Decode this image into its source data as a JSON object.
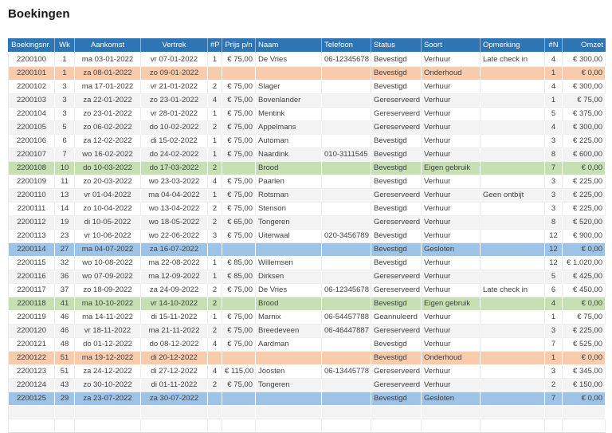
{
  "title": "Boekingen",
  "colors": {
    "header_bg": "#2E75B6",
    "header_text": "#FFFFFF",
    "band_gray": "#F3F3F3",
    "band_orange": "#F8CBAD",
    "band_green": "#C6E0B4",
    "band_blue": "#9DC3E6",
    "body_text": "#404040"
  },
  "table": {
    "columns": [
      {
        "key": "boekingsnr",
        "label": "Boekingsnr.",
        "align": "center"
      },
      {
        "key": "wk",
        "label": "Wk",
        "align": "center"
      },
      {
        "key": "aankomst",
        "label": "Aankomst",
        "align": "center"
      },
      {
        "key": "vertrek",
        "label": "Vertrek",
        "align": "center"
      },
      {
        "key": "p",
        "label": "#P",
        "align": "center"
      },
      {
        "key": "prijs-pn",
        "label": "Prijs p/n",
        "align": "right",
        "header_align": "center"
      },
      {
        "key": "naam",
        "label": "Naam",
        "align": "left"
      },
      {
        "key": "telefoon",
        "label": "Telefoon",
        "align": "left"
      },
      {
        "key": "status",
        "label": "Status",
        "align": "left"
      },
      {
        "key": "soort",
        "label": "Soort",
        "align": "left"
      },
      {
        "key": "opmerking",
        "label": "Opmerking",
        "align": "left"
      },
      {
        "key": "n",
        "label": "#N",
        "align": "center"
      },
      {
        "key": "omzet",
        "label": "Omzet",
        "align": "right"
      }
    ],
    "rows": [
      {
        "band": "white",
        "cells": [
          "2200100",
          "1",
          "ma 03-01-2022",
          "vr 07-01-2022",
          "1",
          "€ 75,00",
          "De Vries",
          "06-12345678",
          "Bevestigd",
          "Verhuur",
          "Late check in",
          "4",
          "€ 300,00"
        ]
      },
      {
        "band": "orange",
        "cells": [
          "2200101",
          "1",
          "za 08-01-2022",
          "zo 09-01-2022",
          "",
          "",
          "",
          "",
          "Bevestigd",
          "Onderhoud",
          "",
          "1",
          "€ 0,00"
        ]
      },
      {
        "band": "white",
        "cells": [
          "2200102",
          "3",
          "ma 17-01-2022",
          "vr 21-01-2022",
          "2",
          "€ 75,00",
          "Slager",
          "",
          "Bevestigd",
          "Verhuur",
          "",
          "4",
          "€ 300,00"
        ]
      },
      {
        "band": "gray",
        "cells": [
          "2200103",
          "3",
          "za 22-01-2022",
          "zo 23-01-2022",
          "4",
          "€ 75,00",
          "Bovenlander",
          "",
          "Gereserveerd",
          "Verhuur",
          "",
          "1",
          "€ 75,00"
        ]
      },
      {
        "band": "white",
        "cells": [
          "2200104",
          "3",
          "zo 23-01-2022",
          "vr 28-01-2022",
          "1",
          "€ 75,00",
          "Mentink",
          "",
          "Gereserveerd",
          "Verhuur",
          "",
          "5",
          "€ 375,00"
        ]
      },
      {
        "band": "gray",
        "cells": [
          "2200105",
          "5",
          "zo 06-02-2022",
          "do 10-02-2022",
          "2",
          "€ 75,00",
          "Appelmans",
          "",
          "Gereserveerd",
          "Verhuur",
          "",
          "4",
          "€ 300,00"
        ]
      },
      {
        "band": "white",
        "cells": [
          "2200106",
          "6",
          "za 12-02-2022",
          "di 15-02-2022",
          "1",
          "€ 75,00",
          "Automan",
          "",
          "Bevestigd",
          "Verhuur",
          "",
          "3",
          "€ 225,00"
        ]
      },
      {
        "band": "gray",
        "cells": [
          "2200107",
          "7",
          "wo 16-02-2022",
          "do 24-02-2022",
          "1",
          "€ 75,00",
          "Naardink",
          "010-3111545",
          "Bevestigd",
          "Verhuur",
          "",
          "8",
          "€ 600,00"
        ]
      },
      {
        "band": "green",
        "cells": [
          "2200108",
          "10",
          "do 10-03-2022",
          "do 17-03-2022",
          "2",
          "",
          "Brood",
          "",
          "Bevestigd",
          "Eigen gebruik",
          "",
          "7",
          "€ 0,00"
        ]
      },
      {
        "band": "white",
        "cells": [
          "2200109",
          "11",
          "zo 20-03-2022",
          "wo 23-03-2022",
          "4",
          "€ 75,00",
          "Paarlen",
          "",
          "Bevestigd",
          "Verhuur",
          "",
          "3",
          "€ 225,00"
        ]
      },
      {
        "band": "gray",
        "cells": [
          "2200110",
          "13",
          "vr 01-04-2022",
          "ma 04-04-2022",
          "1",
          "€ 75,00",
          "Rotsman",
          "",
          "Gereserveerd",
          "Verhuur",
          "Geen ontbijt",
          "3",
          "€ 225,00"
        ]
      },
      {
        "band": "white",
        "cells": [
          "2200111",
          "14",
          "zo 10-04-2022",
          "wo 13-04-2022",
          "2",
          "€ 75,00",
          "Stenson",
          "",
          "Bevestigd",
          "Verhuur",
          "",
          "3",
          "€ 225,00"
        ]
      },
      {
        "band": "gray",
        "cells": [
          "2200112",
          "19",
          "di 10-05-2022",
          "wo 18-05-2022",
          "2",
          "€ 65,00",
          "Tongeren",
          "",
          "Gereserveerd",
          "Verhuur",
          "",
          "8",
          "€ 520,00"
        ]
      },
      {
        "band": "white",
        "cells": [
          "2200113",
          "23",
          "vr 10-06-2022",
          "wo 22-06-2022",
          "3",
          "€ 75,00",
          "Uiterwaal",
          "020-3456789",
          "Bevestigd",
          "Verhuur",
          "",
          "12",
          "€ 900,00"
        ]
      },
      {
        "band": "blue",
        "cells": [
          "2200114",
          "27",
          "ma 04-07-2022",
          "za 16-07-2022",
          "",
          "",
          "",
          "",
          "Bevestigd",
          "Gesloten",
          "",
          "12",
          "€ 0,00"
        ]
      },
      {
        "band": "white",
        "cells": [
          "2200115",
          "32",
          "wo 10-08-2022",
          "ma 22-08-2022",
          "1",
          "€ 85,00",
          "Willemsen",
          "",
          "Bevestigd",
          "Verhuur",
          "",
          "12",
          "€ 1.020,00"
        ]
      },
      {
        "band": "gray",
        "cells": [
          "2200116",
          "36",
          "wo 07-09-2022",
          "ma 12-09-2022",
          "1",
          "€ 85,00",
          "Dirksen",
          "",
          "Gereserveerd",
          "Verhuur",
          "",
          "5",
          "€ 425,00"
        ]
      },
      {
        "band": "white",
        "cells": [
          "2200117",
          "37",
          "zo 18-09-2022",
          "za 24-09-2022",
          "2",
          "€ 75,00",
          "De Vries",
          "06-12345678",
          "Gereserveerd",
          "Verhuur",
          "Late check in",
          "6",
          "€ 450,00"
        ]
      },
      {
        "band": "green",
        "cells": [
          "2200118",
          "41",
          "ma 10-10-2022",
          "vr 14-10-2022",
          "2",
          "",
          "Brood",
          "",
          "Bevestigd",
          "Eigen gebruik",
          "",
          "4",
          "€ 0,00"
        ]
      },
      {
        "band": "white",
        "cells": [
          "2200119",
          "46",
          "ma 14-11-2022",
          "di 15-11-2022",
          "1",
          "€ 75,00",
          "Marnix",
          "06-54457788",
          "Geannuleerd",
          "Verhuur",
          "",
          "1",
          "€ 75,00"
        ]
      },
      {
        "band": "gray",
        "cells": [
          "2200120",
          "46",
          "vr 18-11-2022",
          "ma 21-11-2022",
          "2",
          "€ 75,00",
          "Breedeveen",
          "06-46447887",
          "Gereserveerd",
          "Verhuur",
          "",
          "3",
          "€ 225,00"
        ]
      },
      {
        "band": "white",
        "cells": [
          "2200121",
          "48",
          "do 01-12-2022",
          "do 08-12-2022",
          "4",
          "€ 75,00",
          "Aardman",
          "",
          "Bevestigd",
          "Verhuur",
          "",
          "7",
          "€ 525,00"
        ]
      },
      {
        "band": "orange",
        "cells": [
          "2200122",
          "51",
          "ma 19-12-2022",
          "di 20-12-2022",
          "",
          "",
          "",
          "",
          "Bevestigd",
          "Onderhoud",
          "",
          "1",
          "€ 0,00"
        ]
      },
      {
        "band": "white",
        "cells": [
          "2200123",
          "51",
          "za 24-12-2022",
          "di 27-12-2022",
          "4",
          "€ 115,00",
          "Joosten",
          "06-13445778",
          "Gereserveerd",
          "Verhuur",
          "",
          "3",
          "€ 345,00"
        ]
      },
      {
        "band": "gray",
        "cells": [
          "2200124",
          "43",
          "zo 30-10-2022",
          "di 01-11-2022",
          "2",
          "€ 75,00",
          "Tongeren",
          "",
          "Gereserveerd",
          "Verhuur",
          "",
          "2",
          "€ 150,00"
        ]
      },
      {
        "band": "blue",
        "cells": [
          "2200125",
          "29",
          "za 23-07-2022",
          "za 30-07-2022",
          "",
          "",
          "",
          "",
          "Bevestigd",
          "Gesloten",
          "",
          "7",
          "€ 0,00"
        ]
      },
      {
        "band": "gray",
        "cells": [
          "",
          "",
          "",
          "",
          "",
          "",
          "",
          "",
          "",
          "",
          "",
          "",
          ""
        ]
      },
      {
        "band": "white",
        "cells": [
          "",
          "",
          "",
          "",
          "",
          "",
          "",
          "",
          "",
          "",
          "",
          "",
          ""
        ]
      }
    ]
  }
}
